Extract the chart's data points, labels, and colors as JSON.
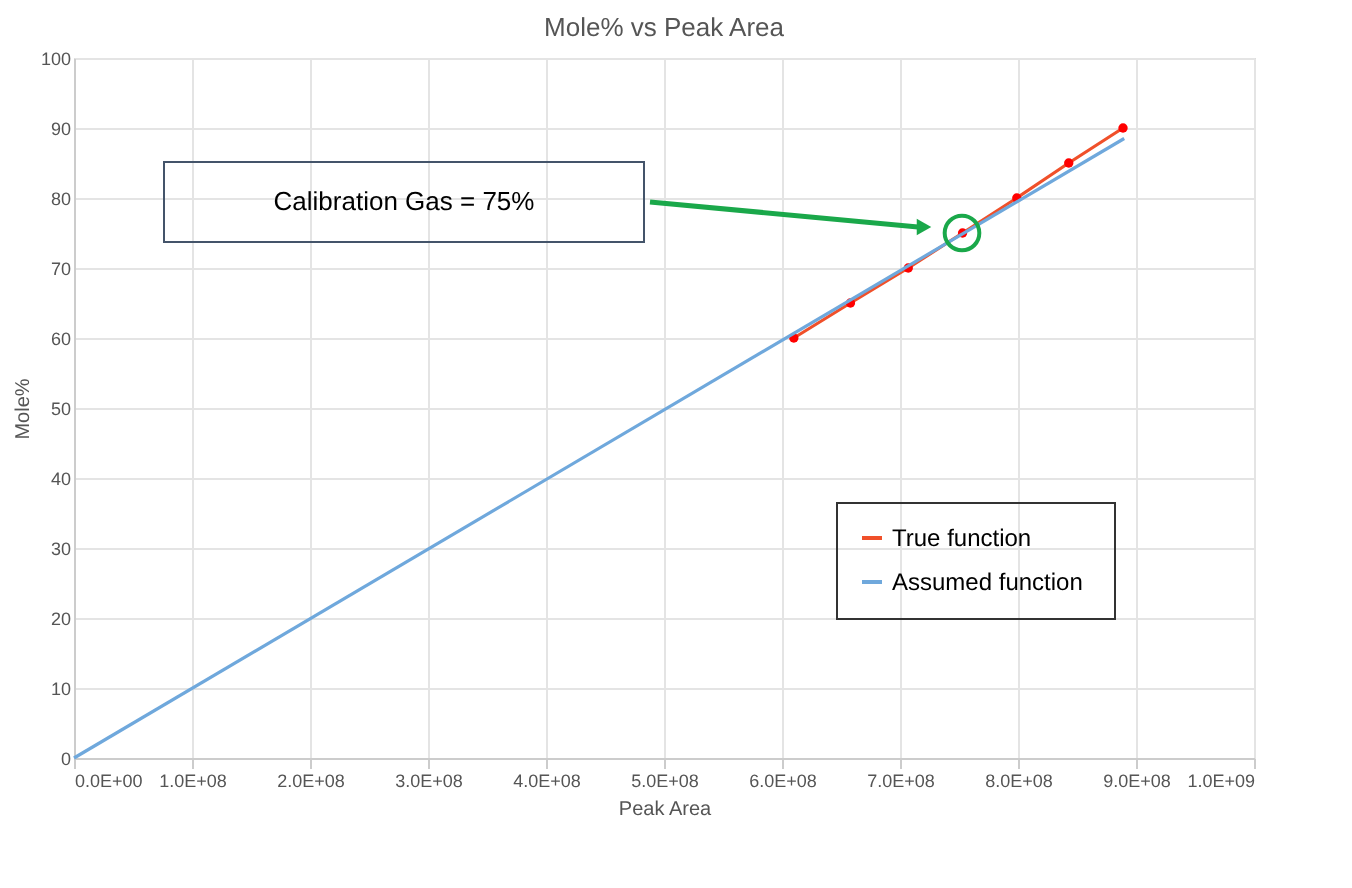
{
  "chart_data": {
    "type": "line",
    "title": "Mole% vs Peak Area",
    "xlabel": "Peak Area",
    "ylabel": "Mole%",
    "series": [
      {
        "name": "True function",
        "color": "#f0502a",
        "marker": "circle",
        "x": [
          610000000,
          658000000,
          707000000,
          753000000,
          799000000,
          843000000,
          889000000
        ],
        "values": [
          60,
          65,
          70,
          75,
          80,
          85,
          90
        ]
      },
      {
        "name": "Assumed  function",
        "color": "#6fa8dc",
        "marker": "none",
        "x": [
          0,
          890000000
        ],
        "values": [
          0,
          88.5
        ]
      }
    ],
    "annotations": [
      "Calibration Gas = 75%"
    ],
    "xlim": [
      0,
      1000000000
    ],
    "ylim": [
      0,
      100
    ],
    "xticks": [
      {
        "value": 0,
        "label": "0.0E+00"
      },
      {
        "value": 100000000,
        "label": "1.0E+08"
      },
      {
        "value": 200000000,
        "label": "2.0E+08"
      },
      {
        "value": 300000000,
        "label": "3.0E+08"
      },
      {
        "value": 400000000,
        "label": "4.0E+08"
      },
      {
        "value": 500000000,
        "label": "5.0E+08"
      },
      {
        "value": 600000000,
        "label": "6.0E+08"
      },
      {
        "value": 700000000,
        "label": "7.0E+08"
      },
      {
        "value": 800000000,
        "label": "8.0E+08"
      },
      {
        "value": 900000000,
        "label": "9.0E+08"
      },
      {
        "value": 1000000000,
        "label": "1.0E+09"
      }
    ],
    "yticks": [
      0,
      10,
      20,
      30,
      40,
      50,
      60,
      70,
      80,
      90,
      100
    ],
    "grid": true,
    "legend": "bottom right"
  }
}
